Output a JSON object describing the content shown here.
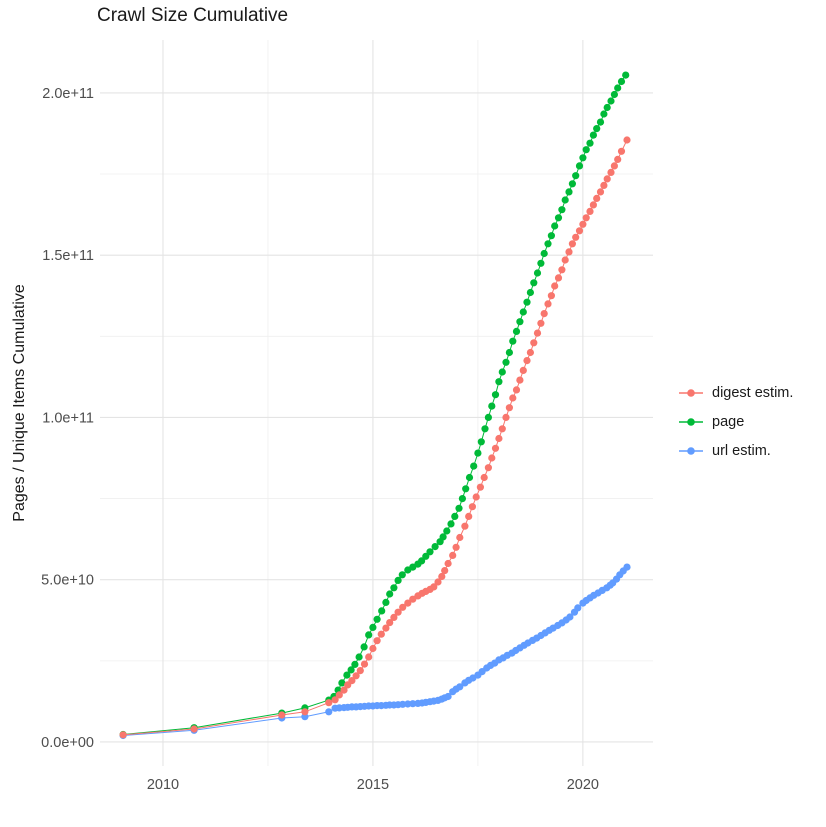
{
  "chart_data": {
    "type": "line",
    "title": "Crawl Size Cumulative",
    "xlabel": "",
    "ylabel": "Pages / Unique Items Cumulative",
    "values_unit": "billions (1e9 items); y tick 2.0e+11 = 200 billions",
    "legend_position": "right",
    "grid": "on",
    "x_axis": {
      "min": 2008.5,
      "max": 2021.67,
      "ticks": [
        {
          "v": 2010,
          "label": "2010"
        },
        {
          "v": 2015,
          "label": "2015"
        },
        {
          "v": 2020,
          "label": "2020"
        }
      ],
      "minor": [
        2012.5,
        2017.5
      ]
    },
    "y_axis": {
      "min": -7.4,
      "max": 216.3,
      "ticks": [
        {
          "v": 0,
          "label": "0.0e+00"
        },
        {
          "v": 50,
          "label": "5.0e+10"
        },
        {
          "v": 100,
          "label": "1.0e+11"
        },
        {
          "v": 150,
          "label": "1.5e+11"
        },
        {
          "v": 200,
          "label": "2.0e+11"
        }
      ],
      "minor": [
        25,
        75,
        125,
        175
      ]
    },
    "series": [
      {
        "name": "digest estim.",
        "color": "#F8766D",
        "points": [
          [
            2009.05,
            2.2
          ],
          [
            2010.74,
            4.0
          ],
          [
            2012.83,
            8.3
          ],
          [
            2013.38,
            9.3
          ],
          [
            2013.95,
            12.1
          ],
          [
            2014.1,
            13.0
          ],
          [
            2014.2,
            14.5
          ],
          [
            2014.31,
            16.0
          ],
          [
            2014.4,
            17.6
          ],
          [
            2014.5,
            18.9
          ],
          [
            2014.6,
            20.4
          ],
          [
            2014.7,
            22.0
          ],
          [
            2014.8,
            24.0
          ],
          [
            2014.9,
            26.2
          ],
          [
            2015.0,
            28.8
          ],
          [
            2015.1,
            31.2
          ],
          [
            2015.2,
            33.2
          ],
          [
            2015.31,
            35.1
          ],
          [
            2015.4,
            36.8
          ],
          [
            2015.5,
            38.4
          ],
          [
            2015.6,
            40.0
          ],
          [
            2015.71,
            41.5
          ],
          [
            2015.83,
            42.8
          ],
          [
            2015.95,
            44.0
          ],
          [
            2016.07,
            45.0
          ],
          [
            2016.17,
            45.8
          ],
          [
            2016.26,
            46.4
          ],
          [
            2016.36,
            47.0
          ],
          [
            2016.45,
            47.8
          ],
          [
            2016.55,
            49.3
          ],
          [
            2016.64,
            51.0
          ],
          [
            2016.71,
            52.8
          ],
          [
            2016.79,
            55.0
          ],
          [
            2016.9,
            57.5
          ],
          [
            2016.98,
            60.0
          ],
          [
            2017.07,
            63.0
          ],
          [
            2017.19,
            66.5
          ],
          [
            2017.28,
            69.5
          ],
          [
            2017.37,
            72.5
          ],
          [
            2017.46,
            75.5
          ],
          [
            2017.56,
            78.5
          ],
          [
            2017.65,
            81.5
          ],
          [
            2017.75,
            84.5
          ],
          [
            2017.83,
            87.5
          ],
          [
            2017.92,
            90.5
          ],
          [
            2018.0,
            93.5
          ],
          [
            2018.08,
            96.5
          ],
          [
            2018.17,
            100.0
          ],
          [
            2018.25,
            103.0
          ],
          [
            2018.33,
            106.0
          ],
          [
            2018.42,
            108.5
          ],
          [
            2018.5,
            111.5
          ],
          [
            2018.58,
            114.5
          ],
          [
            2018.67,
            117.5
          ],
          [
            2018.75,
            120.0
          ],
          [
            2018.83,
            123.0
          ],
          [
            2018.92,
            126.0
          ],
          [
            2019.0,
            129.0
          ],
          [
            2019.08,
            132.0
          ],
          [
            2019.17,
            135.0
          ],
          [
            2019.25,
            137.5
          ],
          [
            2019.33,
            140.5
          ],
          [
            2019.42,
            143.0
          ],
          [
            2019.5,
            145.5
          ],
          [
            2019.58,
            148.5
          ],
          [
            2019.67,
            151.0
          ],
          [
            2019.75,
            153.5
          ],
          [
            2019.83,
            155.5
          ],
          [
            2019.92,
            157.5
          ],
          [
            2020.0,
            159.5
          ],
          [
            2020.08,
            161.5
          ],
          [
            2020.17,
            163.5
          ],
          [
            2020.25,
            165.5
          ],
          [
            2020.33,
            167.5
          ],
          [
            2020.42,
            169.5
          ],
          [
            2020.5,
            171.5
          ],
          [
            2020.58,
            173.5
          ],
          [
            2020.67,
            175.5
          ],
          [
            2020.75,
            177.5
          ],
          [
            2020.83,
            179.5
          ],
          [
            2020.92,
            182.0
          ],
          [
            2021.05,
            185.5
          ]
        ]
      },
      {
        "name": "page",
        "color": "#00BA38",
        "points": [
          [
            2009.05,
            2.3
          ],
          [
            2010.74,
            4.4
          ],
          [
            2012.83,
            8.9
          ],
          [
            2013.38,
            10.5
          ],
          [
            2013.95,
            12.9
          ],
          [
            2014.07,
            14.0
          ],
          [
            2014.17,
            16.0
          ],
          [
            2014.26,
            18.2
          ],
          [
            2014.38,
            20.6
          ],
          [
            2014.48,
            22.2
          ],
          [
            2014.57,
            23.9
          ],
          [
            2014.67,
            26.2
          ],
          [
            2014.79,
            29.3
          ],
          [
            2014.9,
            33.0
          ],
          [
            2015.0,
            35.3
          ],
          [
            2015.1,
            37.8
          ],
          [
            2015.21,
            40.4
          ],
          [
            2015.31,
            43.0
          ],
          [
            2015.4,
            45.6
          ],
          [
            2015.5,
            47.5
          ],
          [
            2015.6,
            49.8
          ],
          [
            2015.7,
            51.5
          ],
          [
            2015.83,
            53.0
          ],
          [
            2015.95,
            53.9
          ],
          [
            2016.07,
            54.8
          ],
          [
            2016.16,
            55.8
          ],
          [
            2016.26,
            57.2
          ],
          [
            2016.36,
            58.6
          ],
          [
            2016.48,
            60.2
          ],
          [
            2016.6,
            61.7
          ],
          [
            2016.67,
            63.2
          ],
          [
            2016.76,
            65.0
          ],
          [
            2016.86,
            67.2
          ],
          [
            2016.95,
            69.5
          ],
          [
            2017.05,
            72.0
          ],
          [
            2017.13,
            75.0
          ],
          [
            2017.21,
            78.0
          ],
          [
            2017.3,
            81.5
          ],
          [
            2017.4,
            85.0
          ],
          [
            2017.5,
            89.0
          ],
          [
            2017.58,
            92.5
          ],
          [
            2017.67,
            96.5
          ],
          [
            2017.75,
            100.0
          ],
          [
            2017.83,
            103.5
          ],
          [
            2017.92,
            107.0
          ],
          [
            2018.0,
            111.0
          ],
          [
            2018.08,
            114.0
          ],
          [
            2018.17,
            117.0
          ],
          [
            2018.25,
            120.0
          ],
          [
            2018.33,
            123.5
          ],
          [
            2018.42,
            126.5
          ],
          [
            2018.5,
            129.5
          ],
          [
            2018.58,
            132.5
          ],
          [
            2018.67,
            135.5
          ],
          [
            2018.75,
            138.5
          ],
          [
            2018.83,
            141.5
          ],
          [
            2018.92,
            144.5
          ],
          [
            2019.0,
            147.5
          ],
          [
            2019.08,
            150.5
          ],
          [
            2019.17,
            153.5
          ],
          [
            2019.25,
            156.0
          ],
          [
            2019.33,
            159.0
          ],
          [
            2019.42,
            161.5
          ],
          [
            2019.5,
            164.0
          ],
          [
            2019.58,
            167.0
          ],
          [
            2019.67,
            169.5
          ],
          [
            2019.75,
            172.0
          ],
          [
            2019.83,
            174.5
          ],
          [
            2019.92,
            177.5
          ],
          [
            2020.0,
            180.0
          ],
          [
            2020.08,
            182.5
          ],
          [
            2020.17,
            184.5
          ],
          [
            2020.25,
            187.0
          ],
          [
            2020.33,
            189.0
          ],
          [
            2020.42,
            191.0
          ],
          [
            2020.5,
            193.5
          ],
          [
            2020.58,
            195.5
          ],
          [
            2020.67,
            197.5
          ],
          [
            2020.75,
            199.5
          ],
          [
            2020.83,
            201.5
          ],
          [
            2020.92,
            203.5
          ],
          [
            2021.02,
            205.5
          ]
        ]
      },
      {
        "name": "url estim.",
        "color": "#619CFF",
        "points": [
          [
            2009.05,
            2.0
          ],
          [
            2010.74,
            3.6
          ],
          [
            2012.83,
            7.4
          ],
          [
            2013.38,
            7.8
          ],
          [
            2013.95,
            9.3
          ],
          [
            2014.1,
            10.4
          ],
          [
            2014.2,
            10.5
          ],
          [
            2014.31,
            10.6
          ],
          [
            2014.4,
            10.7
          ],
          [
            2014.5,
            10.8
          ],
          [
            2014.6,
            10.8
          ],
          [
            2014.7,
            10.9
          ],
          [
            2014.8,
            11.0
          ],
          [
            2014.9,
            11.1
          ],
          [
            2015.0,
            11.1
          ],
          [
            2015.1,
            11.2
          ],
          [
            2015.2,
            11.2
          ],
          [
            2015.31,
            11.3
          ],
          [
            2015.4,
            11.4
          ],
          [
            2015.5,
            11.4
          ],
          [
            2015.6,
            11.5
          ],
          [
            2015.71,
            11.6
          ],
          [
            2015.83,
            11.7
          ],
          [
            2015.95,
            11.8
          ],
          [
            2016.07,
            11.9
          ],
          [
            2016.17,
            12.0
          ],
          [
            2016.26,
            12.2
          ],
          [
            2016.36,
            12.4
          ],
          [
            2016.45,
            12.6
          ],
          [
            2016.55,
            12.8
          ],
          [
            2016.64,
            13.2
          ],
          [
            2016.71,
            13.6
          ],
          [
            2016.79,
            14.0
          ],
          [
            2016.9,
            15.5
          ],
          [
            2016.98,
            16.3
          ],
          [
            2017.07,
            17.0
          ],
          [
            2017.19,
            18.2
          ],
          [
            2017.28,
            19.0
          ],
          [
            2017.38,
            19.7
          ],
          [
            2017.5,
            20.6
          ],
          [
            2017.6,
            21.7
          ],
          [
            2017.71,
            22.8
          ],
          [
            2017.8,
            23.6
          ],
          [
            2017.9,
            24.3
          ],
          [
            2018.0,
            25.3
          ],
          [
            2018.1,
            25.9
          ],
          [
            2018.2,
            26.7
          ],
          [
            2018.31,
            27.4
          ],
          [
            2018.4,
            28.2
          ],
          [
            2018.5,
            29.0
          ],
          [
            2018.6,
            29.8
          ],
          [
            2018.69,
            30.5
          ],
          [
            2018.8,
            31.3
          ],
          [
            2018.9,
            32.0
          ],
          [
            2019.0,
            32.8
          ],
          [
            2019.1,
            33.6
          ],
          [
            2019.2,
            34.4
          ],
          [
            2019.29,
            35.1
          ],
          [
            2019.4,
            35.9
          ],
          [
            2019.5,
            36.7
          ],
          [
            2019.6,
            37.6
          ],
          [
            2019.69,
            38.5
          ],
          [
            2019.8,
            40.0
          ],
          [
            2019.88,
            41.3
          ],
          [
            2020.0,
            42.8
          ],
          [
            2020.08,
            43.6
          ],
          [
            2020.17,
            44.4
          ],
          [
            2020.26,
            45.2
          ],
          [
            2020.36,
            45.9
          ],
          [
            2020.46,
            46.7
          ],
          [
            2020.57,
            47.5
          ],
          [
            2020.65,
            48.3
          ],
          [
            2020.71,
            49.0
          ],
          [
            2020.8,
            50.2
          ],
          [
            2020.88,
            51.5
          ],
          [
            2020.96,
            52.7
          ],
          [
            2021.05,
            53.9
          ]
        ]
      }
    ]
  },
  "colors": {
    "background": "#ffffff",
    "grid_major": "#e4e4e4",
    "grid_minor": "#efefef",
    "tick_text": "#4d4d4d",
    "title_text": "#1a1a1a"
  }
}
